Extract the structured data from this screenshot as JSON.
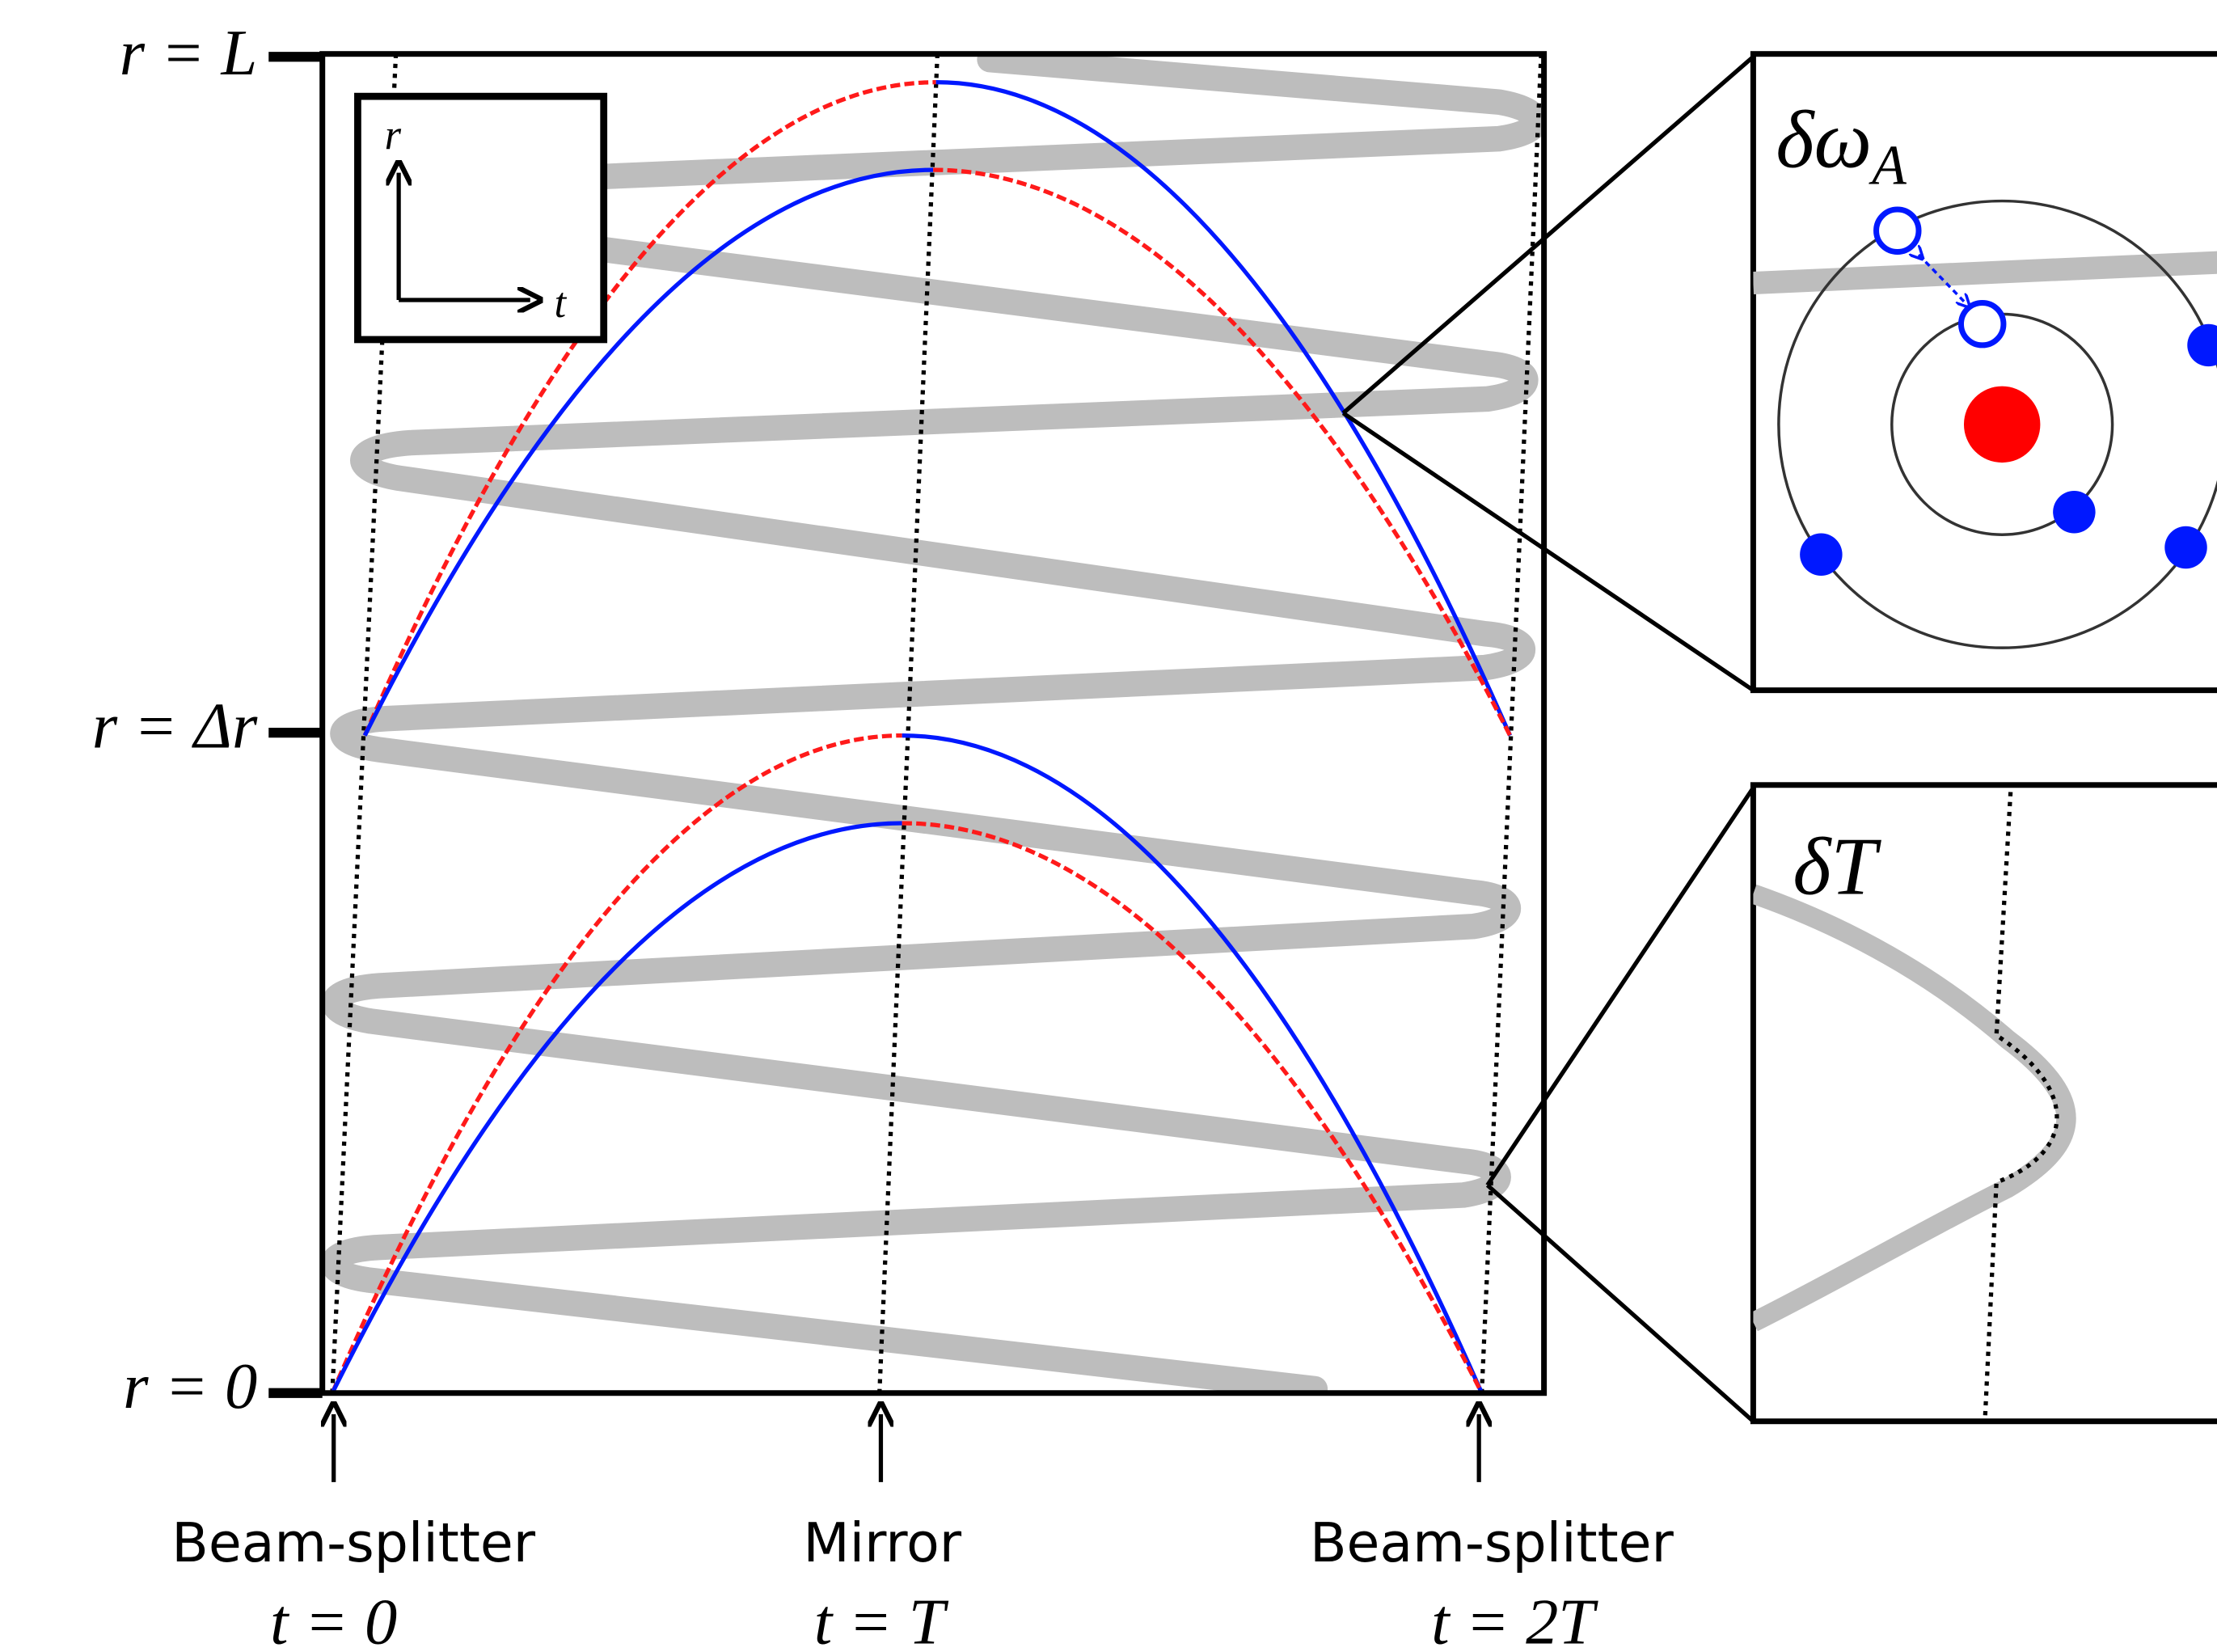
{
  "r_levels": [
    "r = L",
    "r = Δr",
    "r = 0"
  ],
  "events": [
    {
      "name": "Beam-splitter",
      "time": "t = 0"
    },
    {
      "name": "Mirror",
      "time": "t = T"
    },
    {
      "name": "Beam-splitter",
      "time": "t = 2T"
    }
  ],
  "axes_key": {
    "vertical": "r",
    "horizontal": "t"
  },
  "insets": [
    {
      "label": "δω",
      "subscript": "A"
    },
    {
      "label": "δT"
    }
  ]
}
